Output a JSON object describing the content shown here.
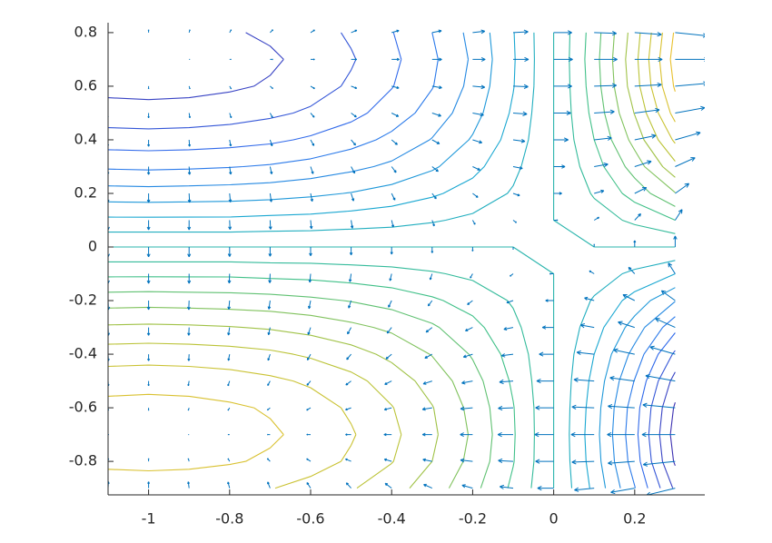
{
  "chart_data": {
    "type": "contour-quiver",
    "xlim": [
      -1.1,
      0.373
    ],
    "ylim": [
      -0.925,
      0.837
    ],
    "xticks": [
      -1,
      -0.8,
      -0.6,
      -0.4,
      -0.2,
      0,
      0.2
    ],
    "yticks": [
      -0.8,
      -0.6,
      -0.4,
      -0.2,
      0,
      0.2,
      0.4,
      0.6,
      0.8
    ],
    "x": [
      -1.1,
      -1.0,
      -0.9,
      -0.8,
      -0.7,
      -0.6,
      -0.5,
      -0.4,
      -0.3,
      -0.2,
      -0.1,
      0,
      0.1,
      0.2,
      0.3
    ],
    "y": [
      0.8,
      0.7,
      0.6,
      0.5,
      0.4,
      0.3,
      0.2,
      0.1,
      0,
      -0.1,
      -0.2,
      -0.3,
      -0.4,
      -0.5,
      -0.6,
      -0.7,
      -0.8,
      -0.9
    ],
    "z": [
      [
        -0.165,
        -0.166,
        -0.165,
        -0.162,
        -0.157,
        -0.149,
        -0.137,
        -0.121,
        -0.1,
        -0.074,
        -0.041,
        0,
        0.05,
        0.11,
        0.183
      ],
      [
        -0.171,
        -0.172,
        -0.171,
        -0.168,
        -0.163,
        -0.154,
        -0.142,
        -0.125,
        -0.104,
        -0.077,
        -0.042,
        0,
        0.052,
        0.114,
        0.189
      ],
      [
        -0.166,
        -0.167,
        -0.166,
        -0.163,
        -0.158,
        -0.149,
        -0.137,
        -0.121,
        -0.101,
        -0.074,
        -0.041,
        0,
        0.05,
        0.111,
        0.183
      ],
      [
        -0.152,
        -0.153,
        -0.152,
        -0.149,
        -0.144,
        -0.137,
        -0.126,
        -0.111,
        -0.092,
        -0.068,
        -0.037,
        0,
        0.046,
        0.101,
        0.168
      ],
      [
        -0.13,
        -0.131,
        -0.13,
        -0.128,
        -0.124,
        -0.117,
        -0.108,
        -0.095,
        -0.079,
        -0.058,
        -0.032,
        0,
        0.04,
        0.087,
        0.144
      ],
      [
        -0.103,
        -0.104,
        -0.103,
        -0.101,
        -0.098,
        -0.093,
        -0.085,
        -0.076,
        -0.063,
        -0.046,
        -0.025,
        0,
        0.031,
        0.069,
        0.114
      ],
      [
        -0.071,
        -0.072,
        -0.071,
        -0.07,
        -0.068,
        -0.064,
        -0.059,
        -0.052,
        -0.043,
        -0.032,
        -0.018,
        0,
        0.022,
        0.048,
        0.079
      ],
      [
        -0.036,
        -0.036,
        -0.036,
        -0.036,
        -0.034,
        -0.033,
        -0.03,
        -0.027,
        -0.022,
        -0.016,
        -0.009,
        0,
        0.011,
        0.024,
        0.04
      ],
      [
        0,
        0,
        0,
        0,
        0,
        0,
        0,
        0,
        0,
        0,
        0,
        0,
        0,
        0,
        0
      ],
      [
        0.036,
        0.036,
        0.036,
        0.036,
        0.034,
        0.033,
        0.03,
        0.027,
        0.022,
        0.016,
        0.009,
        0,
        -0.011,
        -0.024,
        -0.04
      ],
      [
        0.071,
        0.072,
        0.071,
        0.07,
        0.068,
        0.064,
        0.059,
        0.052,
        0.043,
        0.032,
        0.018,
        0,
        -0.022,
        -0.048,
        -0.079
      ],
      [
        0.103,
        0.104,
        0.103,
        0.101,
        0.098,
        0.093,
        0.085,
        0.076,
        0.063,
        0.046,
        0.025,
        0,
        -0.031,
        -0.069,
        -0.114
      ],
      [
        0.13,
        0.131,
        0.13,
        0.128,
        0.124,
        0.117,
        0.108,
        0.095,
        0.079,
        0.058,
        0.032,
        0,
        -0.04,
        -0.087,
        -0.144
      ],
      [
        0.152,
        0.153,
        0.152,
        0.149,
        0.144,
        0.137,
        0.126,
        0.111,
        0.092,
        0.068,
        0.037,
        0,
        -0.046,
        -0.101,
        -0.168
      ],
      [
        0.166,
        0.167,
        0.166,
        0.163,
        0.158,
        0.149,
        0.137,
        0.121,
        0.101,
        0.074,
        0.041,
        0,
        -0.05,
        -0.111,
        -0.183
      ],
      [
        0.171,
        0.172,
        0.171,
        0.168,
        0.163,
        0.154,
        0.142,
        0.125,
        0.104,
        0.077,
        0.042,
        0,
        -0.052,
        -0.114,
        -0.189
      ],
      [
        0.165,
        0.166,
        0.165,
        0.162,
        0.157,
        0.149,
        0.137,
        0.121,
        0.1,
        0.074,
        0.041,
        0,
        -0.05,
        -0.11,
        -0.183
      ],
      [
        0.148,
        0.149,
        0.148,
        0.145,
        0.141,
        0.133,
        0.122,
        0.108,
        0.09,
        0.066,
        0.036,
        0,
        -0.045,
        -0.099,
        -0.164
      ]
    ],
    "levels": [
      -0.18,
      -0.16,
      -0.14,
      -0.12,
      -0.1,
      -0.08,
      -0.06,
      -0.04,
      -0.02,
      0,
      0.02,
      0.04,
      0.06,
      0.08,
      0.1,
      0.12,
      0.14,
      0.16,
      0.18
    ],
    "clim": [
      -0.19,
      0.19
    ],
    "colormap": [
      "#3e26a8",
      "#2f6ff0",
      "#18a9d0",
      "#3dc08a",
      "#b6c338",
      "#f0c02a"
    ],
    "u": [
      [
        -0.01,
        0,
        0.02,
        0.04,
        0.07,
        0.1,
        0.14,
        0.18,
        0.23,
        0.3,
        0.37,
        0.45,
        0.55,
        0.66,
        0.79
      ],
      [
        -0.02,
        0,
        0.02,
        0.04,
        0.07,
        0.1,
        0.14,
        0.19,
        0.24,
        0.31,
        0.38,
        0.47,
        0.57,
        0.68,
        0.82
      ],
      [
        -0.01,
        0,
        0.02,
        0.04,
        0.07,
        0.1,
        0.14,
        0.18,
        0.24,
        0.3,
        0.37,
        0.45,
        0.55,
        0.66,
        0.8
      ],
      [
        -0.01,
        0,
        0.02,
        0.04,
        0.06,
        0.09,
        0.13,
        0.17,
        0.22,
        0.27,
        0.34,
        0.42,
        0.5,
        0.61,
        0.73
      ],
      [
        -0.01,
        0,
        0.01,
        0.03,
        0.05,
        0.08,
        0.11,
        0.14,
        0.18,
        0.23,
        0.29,
        0.36,
        0.43,
        0.52,
        0.62
      ],
      [
        -0.01,
        0,
        0.01,
        0.03,
        0.04,
        0.06,
        0.09,
        0.11,
        0.15,
        0.18,
        0.23,
        0.28,
        0.34,
        0.41,
        0.49
      ],
      [
        -0.01,
        0,
        0.01,
        0.02,
        0.03,
        0.04,
        0.06,
        0.08,
        0.1,
        0.13,
        0.16,
        0.2,
        0.24,
        0.29,
        0.34
      ],
      [
        0,
        0,
        0,
        0.01,
        0.01,
        0.02,
        0.03,
        0.04,
        0.05,
        0.06,
        0.08,
        0.1,
        0.12,
        0.15,
        0.17
      ],
      [
        0,
        0,
        0,
        0,
        0,
        0,
        0,
        0,
        0,
        0,
        0,
        0,
        0,
        0,
        0
      ],
      [
        0,
        0,
        0,
        -0.01,
        -0.01,
        -0.02,
        -0.03,
        -0.04,
        -0.05,
        -0.06,
        -0.08,
        -0.1,
        -0.12,
        -0.15,
        -0.17
      ],
      [
        0.01,
        0,
        -0.01,
        -0.02,
        -0.03,
        -0.04,
        -0.06,
        -0.08,
        -0.1,
        -0.13,
        -0.16,
        -0.2,
        -0.24,
        -0.29,
        -0.34
      ],
      [
        0.01,
        0,
        -0.01,
        -0.03,
        -0.04,
        -0.06,
        -0.09,
        -0.11,
        -0.15,
        -0.18,
        -0.23,
        -0.28,
        -0.34,
        -0.41,
        -0.49
      ],
      [
        0.01,
        0,
        -0.01,
        -0.03,
        -0.05,
        -0.08,
        -0.11,
        -0.14,
        -0.18,
        -0.23,
        -0.29,
        -0.36,
        -0.43,
        -0.52,
        -0.62
      ],
      [
        0.01,
        0,
        -0.02,
        -0.04,
        -0.06,
        -0.09,
        -0.13,
        -0.17,
        -0.22,
        -0.27,
        -0.34,
        -0.42,
        -0.5,
        -0.61,
        -0.73
      ],
      [
        0.01,
        0,
        -0.02,
        -0.04,
        -0.07,
        -0.1,
        -0.14,
        -0.18,
        -0.24,
        -0.3,
        -0.37,
        -0.45,
        -0.55,
        -0.66,
        -0.8
      ],
      [
        0.02,
        0,
        -0.02,
        -0.04,
        -0.07,
        -0.1,
        -0.14,
        -0.19,
        -0.24,
        -0.31,
        -0.38,
        -0.47,
        -0.57,
        -0.68,
        -0.82
      ],
      [
        0.01,
        0,
        -0.02,
        -0.04,
        -0.07,
        -0.1,
        -0.14,
        -0.18,
        -0.23,
        -0.3,
        -0.37,
        -0.45,
        -0.55,
        -0.66,
        -0.79
      ],
      [
        0.01,
        0,
        -0.02,
        -0.04,
        -0.06,
        -0.09,
        -0.12,
        -0.16,
        -0.21,
        -0.26,
        -0.33,
        -0.4,
        -0.49,
        -0.59,
        -0.71
      ]
    ],
    "v": [
      [
        0.11,
        0.11,
        0.11,
        0.11,
        0.11,
        0.1,
        0.09,
        0.08,
        0.07,
        0.05,
        0.03,
        0,
        -0.03,
        -0.07,
        -0.12
      ],
      [
        0,
        0,
        0,
        0,
        0,
        0,
        0,
        0,
        0,
        0,
        0,
        0,
        0,
        0,
        0
      ],
      [
        -0.1,
        -0.1,
        -0.1,
        -0.1,
        -0.09,
        -0.09,
        -0.08,
        -0.07,
        -0.06,
        -0.04,
        -0.02,
        0,
        0.03,
        0.06,
        0.11
      ],
      [
        -0.18,
        -0.18,
        -0.18,
        -0.18,
        -0.17,
        -0.16,
        -0.15,
        -0.13,
        -0.11,
        -0.08,
        -0.04,
        0,
        0.05,
        0.12,
        0.2
      ],
      [
        -0.25,
        -0.25,
        -0.25,
        -0.24,
        -0.23,
        -0.22,
        -0.2,
        -0.18,
        -0.15,
        -0.11,
        -0.06,
        0,
        0.07,
        0.16,
        0.27
      ],
      [
        -0.3,
        -0.3,
        -0.3,
        -0.29,
        -0.28,
        -0.27,
        -0.25,
        -0.22,
        -0.18,
        -0.13,
        -0.07,
        0,
        0.09,
        0.2,
        0.33
      ],
      [
        -0.34,
        -0.34,
        -0.34,
        -0.33,
        -0.32,
        -0.3,
        -0.28,
        -0.25,
        -0.2,
        -0.15,
        -0.08,
        0,
        0.1,
        0.22,
        0.37
      ],
      [
        -0.36,
        -0.36,
        -0.36,
        -0.35,
        -0.34,
        -0.32,
        -0.3,
        -0.26,
        -0.22,
        -0.16,
        -0.09,
        0,
        0.11,
        0.24,
        0.4
      ],
      [
        -0.37,
        -0.37,
        -0.37,
        -0.36,
        -0.35,
        -0.33,
        -0.3,
        -0.27,
        -0.22,
        -0.16,
        -0.09,
        0,
        0.11,
        0.24,
        0.41
      ],
      [
        -0.36,
        -0.36,
        -0.36,
        -0.35,
        -0.34,
        -0.32,
        -0.3,
        -0.26,
        -0.22,
        -0.16,
        -0.09,
        0,
        0.11,
        0.24,
        0.4
      ],
      [
        -0.34,
        -0.34,
        -0.34,
        -0.33,
        -0.32,
        -0.3,
        -0.28,
        -0.25,
        -0.2,
        -0.15,
        -0.08,
        0,
        0.1,
        0.22,
        0.37
      ],
      [
        -0.3,
        -0.3,
        -0.3,
        -0.29,
        -0.28,
        -0.27,
        -0.25,
        -0.22,
        -0.18,
        -0.13,
        -0.07,
        0,
        0.09,
        0.2,
        0.33
      ],
      [
        -0.25,
        -0.25,
        -0.25,
        -0.24,
        -0.23,
        -0.22,
        -0.2,
        -0.18,
        -0.15,
        -0.11,
        -0.06,
        0,
        0.07,
        0.16,
        0.27
      ],
      [
        -0.18,
        -0.18,
        -0.18,
        -0.18,
        -0.17,
        -0.16,
        -0.15,
        -0.13,
        -0.11,
        -0.08,
        -0.04,
        0,
        0.05,
        0.12,
        0.2
      ],
      [
        -0.1,
        -0.1,
        -0.1,
        -0.1,
        -0.09,
        -0.09,
        -0.08,
        -0.07,
        -0.06,
        -0.04,
        -0.02,
        0,
        0.03,
        0.06,
        0.11
      ],
      [
        0,
        0,
        0,
        0,
        0,
        0,
        0,
        0,
        0,
        0,
        0,
        0,
        0,
        0,
        0
      ],
      [
        0.11,
        0.11,
        0.11,
        0.11,
        0.11,
        0.1,
        0.09,
        0.08,
        0.07,
        0.05,
        0.03,
        0,
        -0.03,
        -0.07,
        -0.12
      ],
      [
        0.24,
        0.24,
        0.24,
        0.23,
        0.23,
        0.21,
        0.2,
        0.18,
        0.14,
        0.11,
        0.06,
        0,
        -0.07,
        -0.16,
        -0.26
      ]
    ],
    "arrow_color": "#0072bd"
  }
}
